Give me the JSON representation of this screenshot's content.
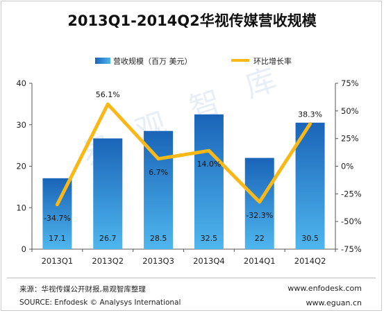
{
  "header": {
    "title": "2013Q1-2014Q2华视传媒营收规模"
  },
  "footer": {
    "source_cn": "来源：华视传媒公开财报,易观智库整理",
    "source_en": "SOURCE: Enfodesk © Analysys International",
    "url1": "www.enfodesk.com",
    "url2": "www.eguan.cn"
  },
  "watermark": "易观智库",
  "colors": {
    "bar_top": "#1a64b8",
    "bar_bottom": "#4fb6ee",
    "line": "#f7b818",
    "axis": "#555555"
  },
  "chart_data": {
    "type": "bar+line",
    "title": "2013Q1-2014Q2华视传媒营收规模",
    "categories": [
      "2013Q1",
      "2013Q2",
      "2013Q3",
      "2013Q4",
      "2014Q1",
      "2014Q2"
    ],
    "series": [
      {
        "name": "营收规模（百万 美元）",
        "type": "bar",
        "axis": "left",
        "values": [
          17.1,
          26.7,
          28.5,
          32.5,
          22,
          30.5
        ],
        "labels": [
          "17.1",
          "26.7",
          "28.5",
          "32.5",
          "22",
          "30.5"
        ]
      },
      {
        "name": "环比增长率",
        "type": "line",
        "axis": "right",
        "values": [
          -34.7,
          56.1,
          6.7,
          14.0,
          -32.3,
          38.3
        ],
        "labels": [
          "-34.7%",
          "56.1%",
          "6.7%",
          "14.0%",
          "-32.3%",
          "38.3%"
        ]
      }
    ],
    "y_left": {
      "min": 0,
      "max": 40,
      "ticks": [
        "0",
        "10",
        "20",
        "30",
        "40"
      ]
    },
    "y_right": {
      "min": -75,
      "max": 75,
      "ticks": [
        "-75%",
        "-50%",
        "-25%",
        "0%",
        "25%",
        "50%",
        "75%"
      ]
    },
    "legend_position": "top-center",
    "grid": false
  }
}
